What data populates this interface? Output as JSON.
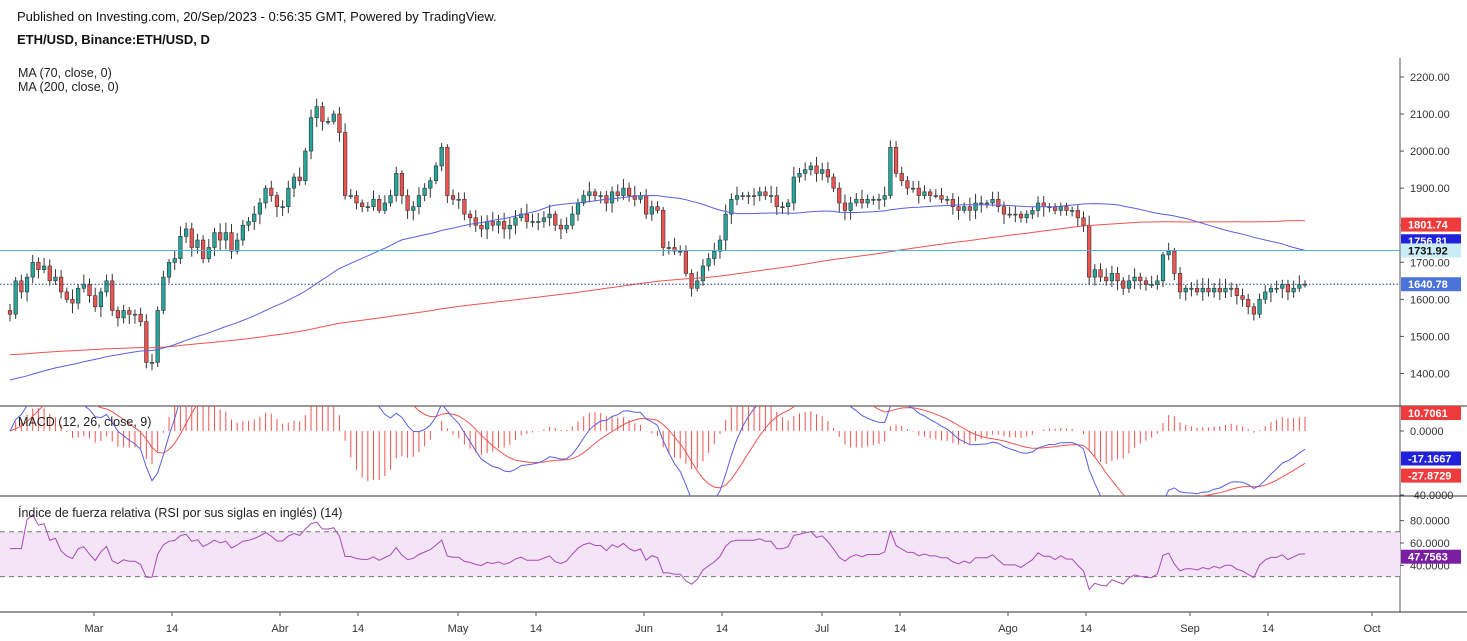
{
  "header": {
    "published": "Published on Investing.com, 20/Sep/2023 - 0:56:35 GMT, Powered by TradingView.",
    "symbol": "ETH/USD, Binance:ETH/USD, D"
  },
  "indicators": {
    "ma70": "MA (70, close, 0)",
    "ma200": "MA (200, close, 0)",
    "macd": "MACD (12, 26, close, 9)",
    "rsi": "Índice de fuerza relativa (RSI por sus siglas en inglés) (14)"
  },
  "colors": {
    "up": "#26a69a",
    "down": "#ef5350",
    "ma70": "#5b5fe0",
    "ma200": "#ef5350",
    "rsi_line": "#ab47bc",
    "rsi_band": "#f3e5f5",
    "hline": "#4fb3d9"
  },
  "chart_data": [
    {
      "type": "candlestick",
      "x_ticks": [
        "Mar",
        "14",
        "Abr",
        "14",
        "May",
        "14",
        "Jun",
        "14",
        "Jul",
        "14",
        "Ago",
        "14",
        "Sep",
        "14",
        "Oct"
      ],
      "y_ticks": [
        "2200.00",
        "2100.00",
        "2000.00",
        "1900.00",
        "1800.00",
        "1700.00",
        "1600.00",
        "1500.00",
        "1400.00"
      ],
      "ylim": [
        1350,
        2230
      ],
      "closes": [
        1560,
        1650,
        1620,
        1660,
        1700,
        1680,
        1690,
        1650,
        1660,
        1620,
        1600,
        1590,
        1630,
        1640,
        1610,
        1580,
        1620,
        1650,
        1570,
        1550,
        1570,
        1560,
        1560,
        1540,
        1430,
        1430,
        1570,
        1660,
        1700,
        1710,
        1770,
        1790,
        1740,
        1760,
        1710,
        1740,
        1780,
        1760,
        1780,
        1730,
        1760,
        1800,
        1810,
        1830,
        1860,
        1900,
        1880,
        1850,
        1850,
        1900,
        1930,
        1920,
        2000,
        2090,
        2120,
        2080,
        2080,
        2100,
        2050,
        1880,
        1880,
        1860,
        1850,
        1850,
        1870,
        1840,
        1860,
        1880,
        1940,
        1880,
        1840,
        1850,
        1880,
        1900,
        1920,
        1960,
        2010,
        1880,
        1870,
        1870,
        1830,
        1820,
        1800,
        1790,
        1810,
        1800,
        1810,
        1790,
        1800,
        1820,
        1830,
        1810,
        1810,
        1810,
        1820,
        1830,
        1800,
        1790,
        1800,
        1830,
        1860,
        1880,
        1890,
        1880,
        1880,
        1860,
        1890,
        1880,
        1900,
        1880,
        1870,
        1880,
        1830,
        1850,
        1840,
        1740,
        1740,
        1730,
        1730,
        1670,
        1630,
        1650,
        1690,
        1710,
        1730,
        1760,
        1830,
        1870,
        1880,
        1880,
        1880,
        1880,
        1890,
        1880,
        1880,
        1850,
        1850,
        1860,
        1930,
        1940,
        1950,
        1960,
        1940,
        1950,
        1930,
        1900,
        1860,
        1840,
        1860,
        1870,
        1860,
        1870,
        1870,
        1870,
        1880,
        2010,
        1940,
        1920,
        1900,
        1900,
        1880,
        1890,
        1880,
        1880,
        1870,
        1870,
        1850,
        1840,
        1850,
        1840,
        1860,
        1860,
        1860,
        1870,
        1850,
        1830,
        1830,
        1830,
        1820,
        1830,
        1840,
        1860,
        1850,
        1850,
        1840,
        1850,
        1840,
        1840,
        1820,
        1800,
        1660,
        1680,
        1660,
        1650,
        1670,
        1650,
        1630,
        1650,
        1660,
        1650,
        1640,
        1640,
        1650,
        1720,
        1730,
        1670,
        1620,
        1630,
        1630,
        1620,
        1630,
        1620,
        1630,
        1620,
        1630,
        1630,
        1610,
        1600,
        1580,
        1560,
        1600,
        1620,
        1630,
        1630,
        1640,
        1620,
        1630,
        1640,
        1641
      ],
      "ma70_current": 1756.81,
      "ma200_current": 1801.74,
      "last_price": 1640.78,
      "horizontal_line": 1731.92,
      "price_badges": [
        "1801.74",
        "1756.81",
        "1731.92",
        "1640.78"
      ]
    },
    {
      "type": "macd",
      "y_ticks": [
        "0.0000",
        "-40.0000"
      ],
      "macd_current": -17.1667,
      "signal_current": -27.8729,
      "hist_current": 10.7061,
      "badges": [
        "10.7061",
        "-17.1667",
        "-27.8729"
      ]
    },
    {
      "type": "rsi",
      "y_ticks": [
        "80.0000",
        "60.0000",
        "40.0000"
      ],
      "upper": 70,
      "lower": 30,
      "current": 47.7563,
      "badges": [
        "47.7563"
      ]
    }
  ]
}
